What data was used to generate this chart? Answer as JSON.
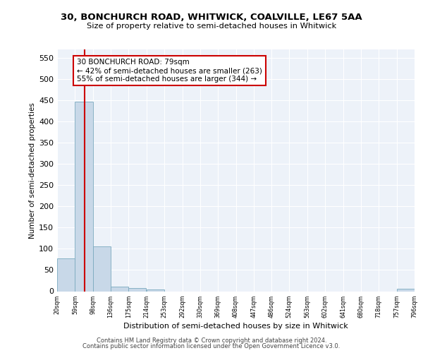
{
  "title_line1": "30, BONCHURCH ROAD, WHITWICK, COALVILLE, LE67 5AA",
  "title_line2": "Size of property relative to semi-detached houses in Whitwick",
  "xlabel": "Distribution of semi-detached houses by size in Whitwick",
  "ylabel": "Number of semi-detached properties",
  "footer_line1": "Contains HM Land Registry data © Crown copyright and database right 2024.",
  "footer_line2": "Contains public sector information licensed under the Open Government Licence v3.0.",
  "annotation_title": "30 BONCHURCH ROAD: 79sqm",
  "annotation_line1": "← 42% of semi-detached houses are smaller (263)",
  "annotation_line2": "55% of semi-detached houses are larger (344) →",
  "subject_size": 79,
  "bar_color": "#c8d8e8",
  "bar_edge_color": "#7baabf",
  "vline_color": "#cc0000",
  "annotation_box_color": "#ffffff",
  "annotation_box_edge": "#cc0000",
  "background_color": "#edf2f9",
  "grid_color": "#ffffff",
  "bin_edges": [
    20,
    59,
    98,
    136,
    175,
    214,
    253,
    292,
    330,
    369,
    408,
    447,
    486,
    524,
    563,
    602,
    641,
    680,
    718,
    757,
    796
  ],
  "bin_labels": [
    "20sqm",
    "59sqm",
    "98sqm",
    "136sqm",
    "175sqm",
    "214sqm",
    "253sqm",
    "292sqm",
    "330sqm",
    "369sqm",
    "408sqm",
    "447sqm",
    "486sqm",
    "524sqm",
    "563sqm",
    "602sqm",
    "641sqm",
    "680sqm",
    "718sqm",
    "757sqm",
    "796sqm"
  ],
  "bar_heights": [
    77,
    447,
    105,
    10,
    8,
    4,
    0,
    0,
    0,
    0,
    0,
    0,
    0,
    0,
    0,
    0,
    0,
    0,
    0,
    5
  ],
  "ylim": [
    0,
    570
  ],
  "yticks": [
    0,
    50,
    100,
    150,
    200,
    250,
    300,
    350,
    400,
    450,
    500,
    550
  ]
}
